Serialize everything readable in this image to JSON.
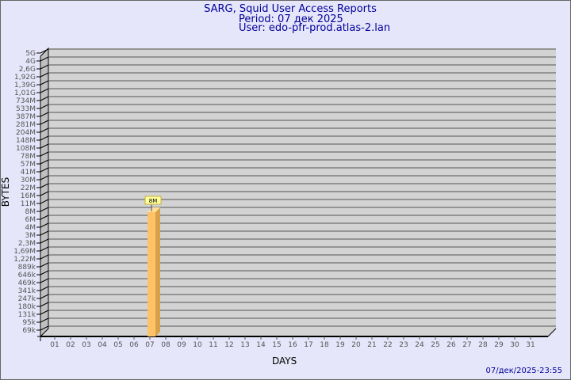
{
  "chart_data": {
    "type": "bar",
    "title": "SARG, Squid User Access Reports",
    "subtitle_period": "Period: 07 дек 2025",
    "subtitle_user": "User: edo-pfr-prod.atlas-2.lan",
    "xlabel": "DAYS",
    "ylabel": "BYTES",
    "y_scale": "log",
    "y_tick_labels": [
      "5G",
      "4G",
      "2,6G",
      "1,92G",
      "1,39G",
      "1,01G",
      "734M",
      "533M",
      "387M",
      "281M",
      "204M",
      "148M",
      "108M",
      "78M",
      "57M",
      "41M",
      "30M",
      "22M",
      "16M",
      "11M",
      "8M",
      "6M",
      "4M",
      "3M",
      "2,3M",
      "1,69M",
      "1,22M",
      "889k",
      "646k",
      "469k",
      "341k",
      "247k",
      "180k",
      "131k",
      "95k",
      "69k"
    ],
    "categories": [
      "01",
      "02",
      "03",
      "04",
      "05",
      "06",
      "07",
      "08",
      "09",
      "10",
      "11",
      "12",
      "13",
      "14",
      "15",
      "16",
      "17",
      "18",
      "19",
      "20",
      "21",
      "22",
      "23",
      "24",
      "25",
      "26",
      "27",
      "28",
      "29",
      "30",
      "31"
    ],
    "series": [
      {
        "values": [
          null,
          null,
          null,
          null,
          null,
          null,
          "8M",
          null,
          null,
          null,
          null,
          null,
          null,
          null,
          null,
          null,
          null,
          null,
          null,
          null,
          null,
          null,
          null,
          null,
          null,
          null,
          null,
          null,
          null,
          null,
          null
        ]
      }
    ],
    "data_labels": {
      "07": "8M"
    },
    "grid": true,
    "colors": {
      "bar": "#ffc266",
      "bar_side": "#d9a04a",
      "bar_top": "#ffe099",
      "plot": "#d3d3d3",
      "background": "#e6e6fa",
      "title": "#000099"
    }
  },
  "footer_timestamp": "07/дек/2025-23:55"
}
